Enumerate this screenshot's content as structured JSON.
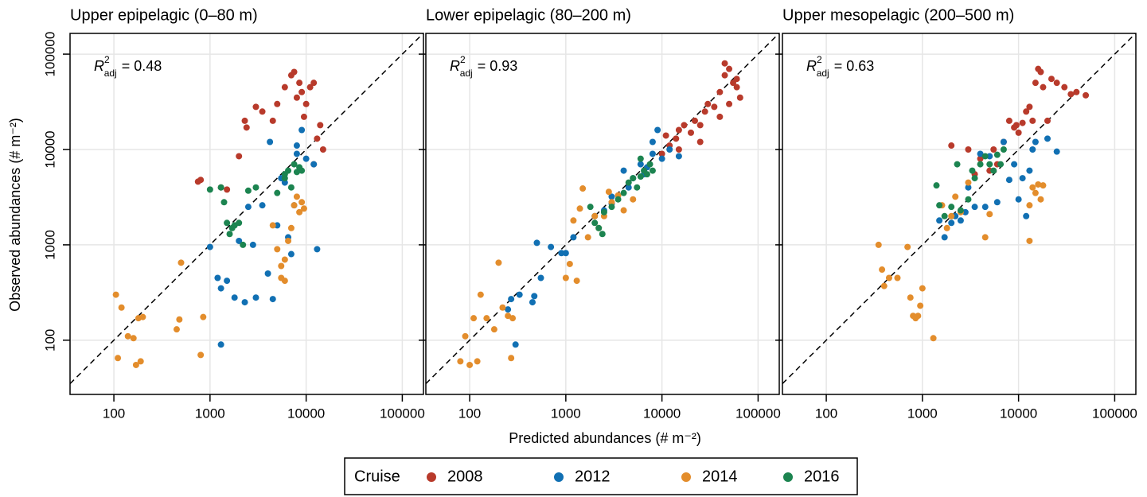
{
  "figure": {
    "xlabel": "Predicted abundances (# m⁻²)",
    "ylabel": "Observed abundances (# m⁻²)"
  },
  "legend": {
    "title": "Cruise",
    "entries": [
      {
        "name": "2008",
        "color": "#b83a2b"
      },
      {
        "name": "2012",
        "color": "#1170b3"
      },
      {
        "name": "2014",
        "color": "#e38d2c"
      },
      {
        "name": "2016",
        "color": "#1c8450"
      }
    ]
  },
  "chart_data": [
    {
      "type": "scatter",
      "title": "Upper epipelagic (0–80 m)",
      "annotation": {
        "symbol": "R",
        "sup": "2",
        "sub": "adj",
        "text": "= 0.48"
      },
      "xscale": "log",
      "yscale": "log",
      "grid": true,
      "yticklabels": true,
      "xlim": [
        35,
        166000
      ],
      "ylim": [
        27,
        165000
      ],
      "xticks": [
        100,
        1000,
        10000,
        100000
      ],
      "yticks": [
        100,
        1000,
        10000,
        100000
      ],
      "series": [
        {
          "color": "#b83a2b",
          "x": [
            750,
            800,
            1300,
            1500,
            2300,
            2400,
            3000,
            3500,
            4500,
            5000,
            6000,
            7000,
            7500,
            8000,
            8500,
            9000,
            10000,
            11000,
            12000,
            13000,
            14000,
            15000,
            2000,
            9500,
            12000
          ],
          "values": [
            4600,
            4800,
            4000,
            3800,
            20000,
            17000,
            28000,
            25000,
            20000,
            30000,
            45000,
            60000,
            65000,
            35000,
            50000,
            40000,
            30000,
            45000,
            50000,
            13000,
            18000,
            10000,
            8500,
            22000,
            7000
          ]
        },
        {
          "color": "#1170b3",
          "x": [
            1000,
            1200,
            1300,
            1500,
            1800,
            2000,
            2300,
            2500,
            3000,
            3500,
            4200,
            4500,
            5000,
            5500,
            6500,
            7000,
            7500,
            8000,
            9000,
            10000,
            12000,
            13000,
            1300,
            2800,
            4000,
            6000,
            8000
          ],
          "values": [
            950,
            450,
            90,
            420,
            280,
            1100,
            250,
            2500,
            280,
            2600,
            12000,
            270,
            1600,
            5000,
            1200,
            800,
            2600,
            9000,
            16000,
            8000,
            7000,
            900,
            350,
            1000,
            500,
            4500,
            11000
          ]
        },
        {
          "color": "#e38d2c",
          "x": [
            105,
            110,
            120,
            140,
            160,
            170,
            180,
            190,
            200,
            450,
            480,
            500,
            800,
            850,
            4500,
            5000,
            5500,
            6000,
            6500,
            7000,
            7500,
            8000,
            8500,
            9000,
            9500,
            5500,
            6000
          ],
          "values": [
            300,
            65,
            220,
            110,
            105,
            55,
            170,
            60,
            175,
            130,
            165,
            650,
            70,
            175,
            1600,
            900,
            600,
            420,
            1100,
            1500,
            2600,
            3200,
            2200,
            2800,
            2400,
            450,
            700
          ]
        },
        {
          "color": "#1c8450",
          "x": [
            1000,
            1300,
            1500,
            1600,
            1700,
            1800,
            2000,
            2500,
            3000,
            5000,
            6000,
            6500,
            7000,
            7500,
            8000,
            8500,
            9000,
            1400,
            2200,
            6000
          ],
          "values": [
            3800,
            4000,
            1700,
            1300,
            1500,
            1600,
            1700,
            3700,
            4000,
            3500,
            5500,
            6000,
            4000,
            7000,
            5800,
            6500,
            6000,
            2800,
            1000,
            5000
          ]
        }
      ]
    },
    {
      "type": "scatter",
      "title": "Lower epipelagic (80–200 m)",
      "annotation": {
        "symbol": "R",
        "sup": "2",
        "sub": "adj",
        "text": "= 0.93"
      },
      "xscale": "log",
      "yscale": "log",
      "grid": true,
      "yticklabels": false,
      "xlim": [
        35,
        166000
      ],
      "ylim": [
        27,
        165000
      ],
      "xticks": [
        100,
        1000,
        10000,
        100000
      ],
      "yticks": [
        100,
        1000,
        10000,
        100000
      ],
      "series": [
        {
          "color": "#b83a2b",
          "x": [
            10000,
            11000,
            12000,
            14000,
            15000,
            17000,
            20000,
            22000,
            25000,
            28000,
            30000,
            35000,
            40000,
            45000,
            50000,
            55000,
            60000,
            65000,
            40000,
            50000,
            60000,
            25000,
            15000,
            45000
          ],
          "values": [
            9000,
            14000,
            11000,
            13000,
            16000,
            18000,
            15000,
            20000,
            18000,
            25000,
            30000,
            28000,
            40000,
            60000,
            70000,
            50000,
            45000,
            35000,
            22000,
            30000,
            55000,
            12000,
            10000,
            80000
          ]
        },
        {
          "color": "#1170b3",
          "x": [
            250,
            270,
            300,
            330,
            450,
            470,
            500,
            550,
            700,
            900,
            1000,
            1200,
            2000,
            2500,
            3000,
            4000,
            5000,
            6000,
            7000,
            8000,
            9000,
            10000,
            12000,
            15000,
            4500,
            6500,
            8000,
            3000
          ],
          "values": [
            210,
            270,
            90,
            300,
            250,
            290,
            1050,
            450,
            950,
            820,
            820,
            1200,
            2000,
            2300,
            2700,
            6000,
            5000,
            7000,
            6500,
            9000,
            16000,
            8000,
            10000,
            8500,
            4000,
            5500,
            12000,
            3200
          ]
        },
        {
          "color": "#e38d2c",
          "x": [
            80,
            90,
            100,
            110,
            120,
            130,
            150,
            180,
            200,
            220,
            250,
            270,
            280,
            1000,
            1100,
            1200,
            1300,
            1500,
            1700,
            2000,
            2200,
            2500,
            3000,
            3500,
            4000,
            5000,
            1400,
            2800
          ],
          "values": [
            60,
            110,
            55,
            170,
            60,
            300,
            170,
            130,
            650,
            220,
            180,
            65,
            170,
            450,
            630,
            1800,
            420,
            3900,
            1200,
            2000,
            1500,
            2000,
            2800,
            3300,
            2300,
            3000,
            2400,
            3600
          ]
        },
        {
          "color": "#1c8450",
          "x": [
            1800,
            2000,
            2200,
            2500,
            3000,
            4000,
            4500,
            5000,
            5500,
            6000,
            6500,
            7000,
            7500,
            8000,
            2400,
            3500,
            6000
          ],
          "values": [
            2500,
            1700,
            1500,
            2200,
            2500,
            3500,
            4500,
            5000,
            4000,
            5200,
            6000,
            5500,
            7000,
            6000,
            1300,
            3000,
            8000
          ]
        }
      ]
    },
    {
      "type": "scatter",
      "title": "Upper mesopelagic (200–500 m)",
      "annotation": {
        "symbol": "R",
        "sup": "2",
        "sub": "adj",
        "text": "= 0.63"
      },
      "xscale": "log",
      "yscale": "log",
      "grid": true,
      "yticklabels": false,
      "xlim": [
        35,
        166000
      ],
      "ylim": [
        27,
        165000
      ],
      "xticks": [
        100,
        1000,
        10000,
        100000
      ],
      "yticks": [
        100,
        1000,
        10000,
        100000
      ],
      "series": [
        {
          "color": "#b83a2b",
          "x": [
            2000,
            3000,
            3500,
            4000,
            5000,
            5500,
            7000,
            8000,
            9000,
            10000,
            11000,
            12000,
            13000,
            14000,
            15000,
            16000,
            17000,
            18000,
            20000,
            22000,
            25000,
            30000,
            35000,
            40000,
            50000,
            6000,
            9500
          ],
          "values": [
            11000,
            10000,
            5500,
            8000,
            6000,
            10000,
            12000,
            20000,
            17000,
            15000,
            19000,
            25000,
            28000,
            20000,
            50000,
            70000,
            65000,
            45000,
            20000,
            55000,
            50000,
            45000,
            38000,
            40000,
            37000,
            7000,
            18000
          ]
        },
        {
          "color": "#1170b3",
          "x": [
            1700,
            2000,
            2200,
            2500,
            3000,
            3500,
            4000,
            4500,
            5000,
            6000,
            7000,
            8000,
            9000,
            10000,
            11000,
            12000,
            13000,
            14000,
            15000,
            20000,
            25000,
            1500,
            2800
          ],
          "values": [
            1200,
            1700,
            2000,
            1800,
            4000,
            2500,
            9000,
            2500,
            8500,
            2800,
            12000,
            4800,
            7000,
            3000,
            5000,
            2000,
            6000,
            10000,
            12000,
            13000,
            9500,
            1800,
            2200
          ]
        },
        {
          "color": "#e38d2c",
          "x": [
            350,
            380,
            400,
            450,
            550,
            700,
            750,
            800,
            850,
            900,
            950,
            1000,
            1300,
            1600,
            1800,
            2000,
            2200,
            2500,
            3000,
            4500,
            5000,
            13000,
            14000,
            15000,
            16000,
            17000,
            18000,
            13000
          ],
          "values": [
            1000,
            550,
            370,
            450,
            450,
            950,
            280,
            180,
            170,
            180,
            230,
            350,
            105,
            2600,
            1500,
            2000,
            3200,
            2200,
            4500,
            1200,
            2100,
            1100,
            4000,
            3500,
            4300,
            3000,
            4200,
            2600
          ]
        },
        {
          "color": "#1c8450",
          "x": [
            1400,
            1500,
            2000,
            2300,
            2500,
            3000,
            3500,
            4000,
            4500,
            5000,
            5500,
            6000,
            6500,
            7000,
            3300,
            1700
          ],
          "values": [
            4200,
            2600,
            2500,
            7000,
            2300,
            3000,
            5000,
            7000,
            8500,
            7000,
            6000,
            8800,
            7000,
            10000,
            6000,
            2000
          ]
        }
      ]
    }
  ]
}
